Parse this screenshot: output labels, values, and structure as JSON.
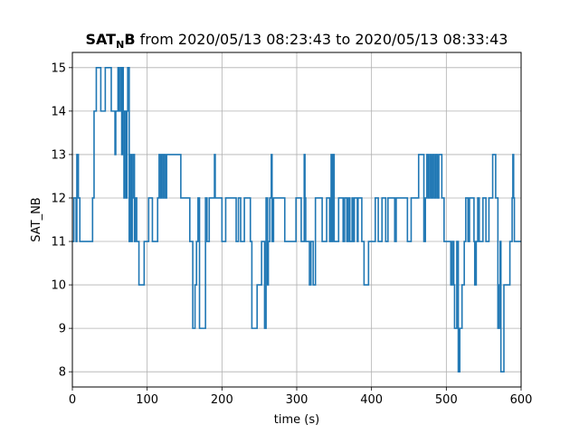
{
  "chart_data": {
    "type": "line",
    "title_main": "SAT",
    "title_sub": "N",
    "title_main_suffix": "B",
    "title_rest": " from 2020/05/13 08:23:43 to 2020/05/13 08:33:43",
    "xlabel": "time (s)",
    "ylabel": "SAT_NB",
    "xlim": [
      0,
      600
    ],
    "ylim": [
      7.65,
      15.35
    ],
    "xticks": [
      0,
      100,
      200,
      300,
      400,
      500,
      600
    ],
    "yticks": [
      8,
      9,
      10,
      11,
      12,
      13,
      14,
      15
    ],
    "grid": true,
    "step": "post",
    "series": [
      {
        "color": "#1f77b4",
        "points": [
          [
            0,
            11
          ],
          [
            2,
            12
          ],
          [
            5,
            11
          ],
          [
            6,
            13
          ],
          [
            8,
            12
          ],
          [
            10,
            11
          ],
          [
            27,
            12
          ],
          [
            29,
            14
          ],
          [
            32,
            15
          ],
          [
            38,
            14
          ],
          [
            44,
            15
          ],
          [
            52,
            14
          ],
          [
            54,
            14
          ],
          [
            57,
            13
          ],
          [
            58,
            14
          ],
          [
            61,
            15
          ],
          [
            62,
            14
          ],
          [
            64,
            15
          ],
          [
            66,
            13
          ],
          [
            67,
            15
          ],
          [
            68,
            14
          ],
          [
            69,
            12
          ],
          [
            70,
            14
          ],
          [
            72,
            12
          ],
          [
            73,
            14
          ],
          [
            74,
            15
          ],
          [
            76,
            11
          ],
          [
            78,
            13
          ],
          [
            79,
            11
          ],
          [
            80,
            12
          ],
          [
            81,
            13
          ],
          [
            83,
            11
          ],
          [
            84,
            12
          ],
          [
            86,
            11
          ],
          [
            89,
            10
          ],
          [
            96,
            11
          ],
          [
            102,
            12
          ],
          [
            104,
            12
          ],
          [
            107,
            11
          ],
          [
            114,
            12
          ],
          [
            116,
            13
          ],
          [
            118,
            12
          ],
          [
            119,
            13
          ],
          [
            121,
            12
          ],
          [
            122,
            13
          ],
          [
            124,
            12
          ],
          [
            126,
            13
          ],
          [
            145,
            12
          ],
          [
            157,
            11
          ],
          [
            161,
            9
          ],
          [
            164,
            10
          ],
          [
            166,
            11
          ],
          [
            168,
            12
          ],
          [
            170,
            9
          ],
          [
            174,
            9
          ],
          [
            178,
            12
          ],
          [
            180,
            11
          ],
          [
            183,
            12
          ],
          [
            186,
            12
          ],
          [
            190,
            13
          ],
          [
            191,
            12
          ],
          [
            200,
            11
          ],
          [
            205,
            12
          ],
          [
            212,
            12
          ],
          [
            219,
            11
          ],
          [
            222,
            12
          ],
          [
            225,
            11
          ],
          [
            230,
            12
          ],
          [
            238,
            11
          ],
          [
            240,
            9
          ],
          [
            246,
            9
          ],
          [
            247,
            10
          ],
          [
            253,
            11
          ],
          [
            257,
            9
          ],
          [
            259,
            12
          ],
          [
            261,
            10
          ],
          [
            262,
            11
          ],
          [
            264,
            12
          ],
          [
            266,
            13
          ],
          [
            267,
            11
          ],
          [
            269,
            12
          ],
          [
            272,
            12
          ],
          [
            277,
            12
          ],
          [
            284,
            11
          ],
          [
            299,
            12
          ],
          [
            306,
            11
          ],
          [
            310,
            13
          ],
          [
            311,
            12
          ],
          [
            312,
            11
          ],
          [
            317,
            10
          ],
          [
            319,
            11
          ],
          [
            322,
            10
          ],
          [
            325,
            12
          ],
          [
            328,
            12
          ],
          [
            334,
            11
          ],
          [
            336,
            11
          ],
          [
            340,
            12
          ],
          [
            341,
            12
          ],
          [
            344,
            11
          ],
          [
            345,
            11
          ],
          [
            346,
            13
          ],
          [
            347,
            11
          ],
          [
            348,
            13
          ],
          [
            350,
            11
          ],
          [
            356,
            12
          ],
          [
            362,
            11
          ],
          [
            364,
            12
          ],
          [
            367,
            11
          ],
          [
            369,
            12
          ],
          [
            371,
            11
          ],
          [
            374,
            12
          ],
          [
            375,
            11
          ],
          [
            377,
            12
          ],
          [
            381,
            11
          ],
          [
            382,
            12
          ],
          [
            384,
            12
          ],
          [
            387,
            11
          ],
          [
            390,
            10
          ],
          [
            396,
            11
          ],
          [
            405,
            12
          ],
          [
            409,
            11
          ],
          [
            414,
            12
          ],
          [
            419,
            11
          ],
          [
            422,
            12
          ],
          [
            431,
            11
          ],
          [
            433,
            12
          ],
          [
            448,
            11
          ],
          [
            453,
            12
          ],
          [
            459,
            12
          ],
          [
            461,
            12
          ],
          [
            463,
            13
          ],
          [
            469,
            13
          ],
          [
            470,
            11
          ],
          [
            472,
            12
          ],
          [
            474,
            13
          ],
          [
            476,
            12
          ],
          [
            478,
            13
          ],
          [
            480,
            12
          ],
          [
            482,
            13
          ],
          [
            484,
            12
          ],
          [
            486,
            13
          ],
          [
            488,
            12
          ],
          [
            490,
            13
          ],
          [
            494,
            12
          ],
          [
            497,
            11
          ],
          [
            506,
            10
          ],
          [
            508,
            11
          ],
          [
            510,
            10
          ],
          [
            511,
            9
          ],
          [
            514,
            11
          ],
          [
            516,
            8
          ],
          [
            518,
            9
          ],
          [
            521,
            10
          ],
          [
            524,
            11
          ],
          [
            526,
            12
          ],
          [
            529,
            11
          ],
          [
            531,
            12
          ],
          [
            534,
            12
          ],
          [
            537,
            11
          ],
          [
            538,
            10
          ],
          [
            540,
            11
          ],
          [
            542,
            12
          ],
          [
            544,
            11
          ],
          [
            547,
            11
          ],
          [
            549,
            12
          ],
          [
            553,
            11
          ],
          [
            555,
            11
          ],
          [
            557,
            12
          ],
          [
            560,
            12
          ],
          [
            562,
            13
          ],
          [
            566,
            12
          ],
          [
            567,
            12
          ],
          [
            569,
            9
          ],
          [
            571,
            10
          ],
          [
            572,
            11
          ],
          [
            573,
            8
          ],
          [
            577,
            10
          ],
          [
            585,
            11
          ],
          [
            588,
            12
          ],
          [
            589,
            13
          ],
          [
            590,
            12
          ],
          [
            591,
            11
          ],
          [
            600,
            11
          ]
        ]
      }
    ]
  }
}
